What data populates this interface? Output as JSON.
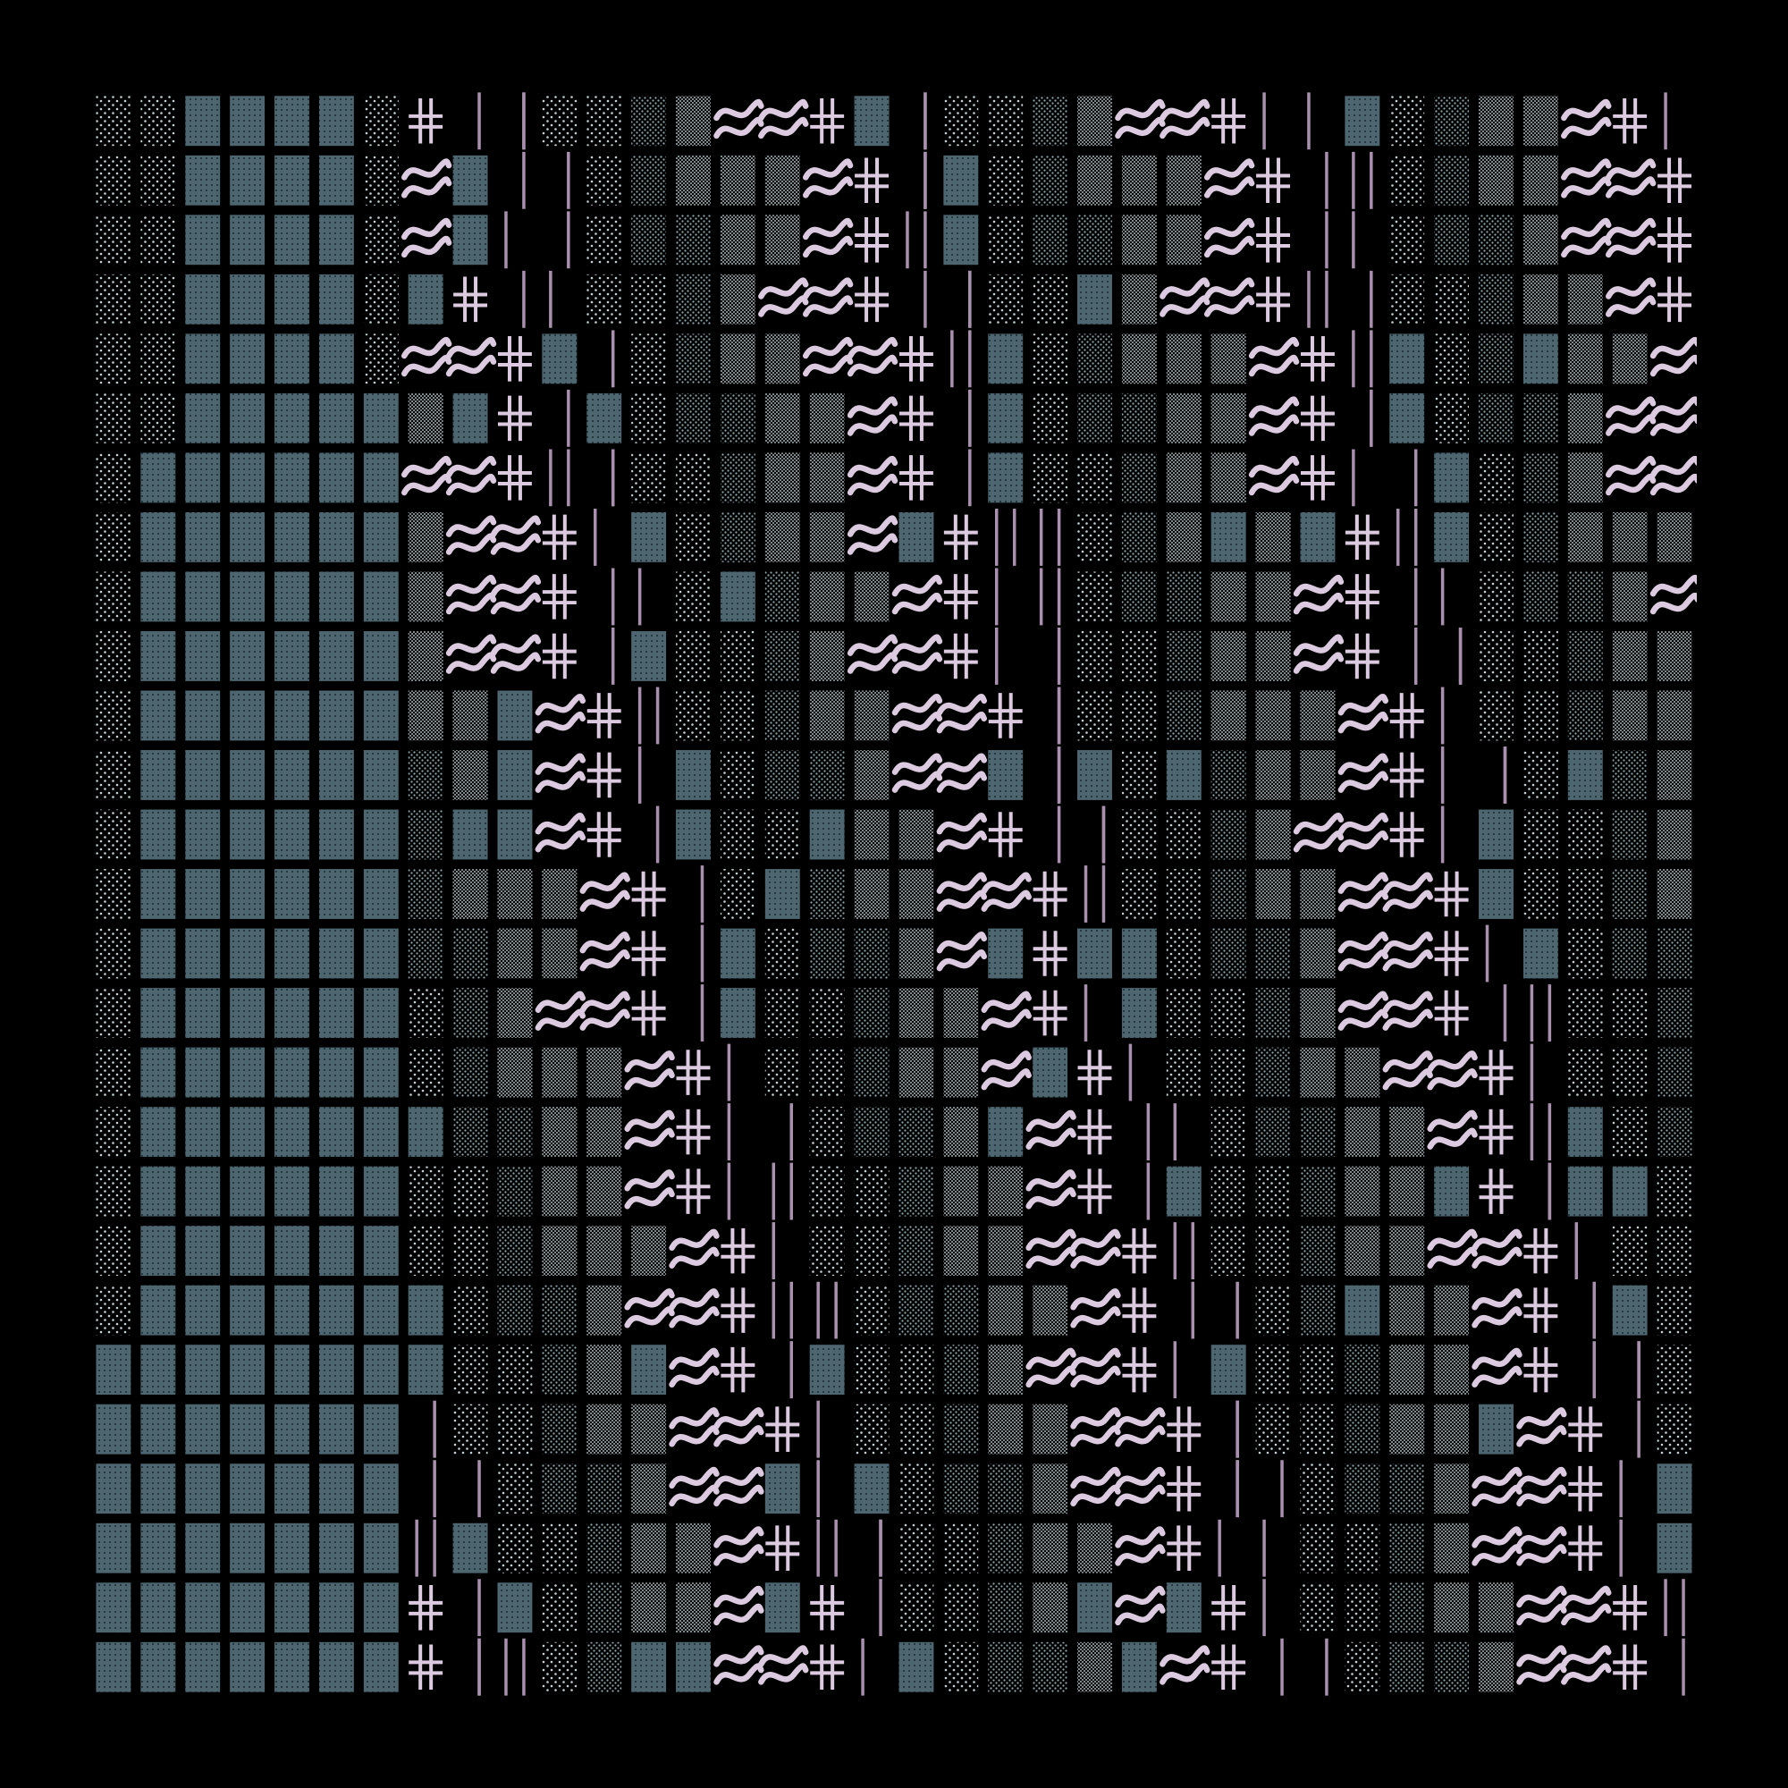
{
  "artwork": {
    "background_color": "#000000",
    "grid": {
      "columns": 36,
      "rows": 27
    },
    "palette": {
      "tile_fill": "#4d6670",
      "tile_dots": "#21343b",
      "stipple_light": "#c4d2d6",
      "stipple_mid": "#93a9b0",
      "stipple_dense": "#b0c2c7",
      "glyph": "#dccbe0",
      "bar": "#a990ae"
    },
    "glyph_types": [
      "solid-tile",
      "stipple-sparse",
      "stipple-medium",
      "stipple-dense",
      "approx-wave",
      "double-cross",
      "vertical-bar",
      "empty"
    ],
    "tile_columns_pattern": {
      "description_source": "visual",
      "solid_tile_columns_left": [
        1,
        2,
        3,
        4,
        5,
        6
      ]
    }
  }
}
